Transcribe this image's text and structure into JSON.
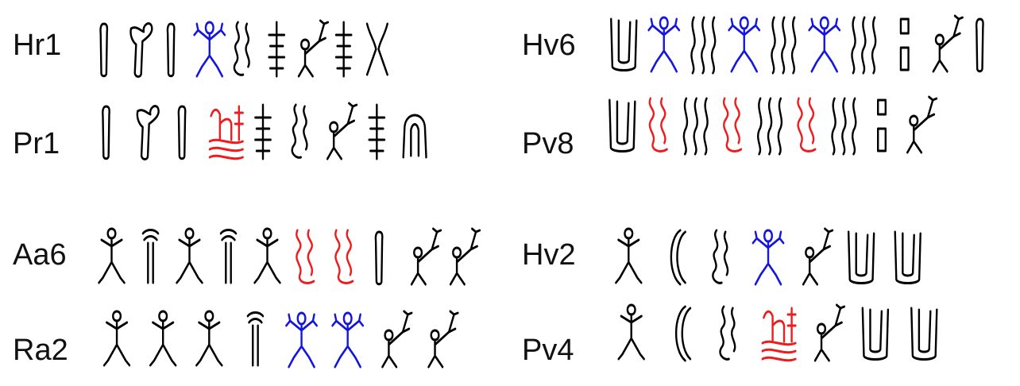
{
  "colors": {
    "ink": "#000000",
    "blue": "#1515e0",
    "red": "#ee1c1c"
  },
  "rows": [
    {
      "label": "Hr1",
      "glyphs": [
        "bar",
        "crook",
        "bar",
        "figure-arms",
        "squiggle",
        "tree",
        "figure-hand",
        "tree",
        "fork"
      ],
      "colors": [
        "ink",
        "ink",
        "ink",
        "blue",
        "ink",
        "ink",
        "ink",
        "ink",
        "ink"
      ]
    },
    {
      "label": "Pr1",
      "glyphs": [
        "bar",
        "crook",
        "bar",
        "tree-figure",
        "tree",
        "squiggle",
        "figure-hand",
        "tree",
        "arch"
      ],
      "colors": [
        "ink",
        "ink",
        "ink",
        "red",
        "ink",
        "ink",
        "ink",
        "ink",
        "ink"
      ]
    },
    {
      "label": "Aa6",
      "glyphs": [
        "figure-small",
        "pole",
        "figure-small",
        "pole",
        "figure-small",
        "coil",
        "coil",
        "bar",
        "figure-hand",
        "figure-hand"
      ],
      "colors": [
        "ink",
        "ink",
        "ink",
        "ink",
        "ink",
        "red",
        "red",
        "ink",
        "ink",
        "ink"
      ]
    },
    {
      "label": "Ra2",
      "glyphs": [
        "figure-small",
        "figure-small",
        "figure-small",
        "pole",
        "figure-arms",
        "figure-arms",
        "figure-hand",
        "figure-hand"
      ],
      "colors": [
        "ink",
        "ink",
        "ink",
        "ink",
        "blue",
        "blue",
        "ink",
        "ink"
      ]
    },
    {
      "label": "Hv6",
      "glyphs": [
        "cup",
        "figure-arms",
        "wave",
        "figure-arms",
        "wave",
        "figure-arms",
        "wave",
        "dot-pair",
        "figure-hand",
        "bar"
      ],
      "colors": [
        "ink",
        "blue",
        "ink",
        "blue",
        "ink",
        "blue",
        "ink",
        "ink",
        "ink",
        "ink"
      ]
    },
    {
      "label": "Pv8",
      "glyphs": [
        "cup",
        "coil",
        "wave",
        "coil",
        "wave",
        "coil",
        "wave",
        "dot-pair",
        "figure-hand"
      ],
      "colors": [
        "ink",
        "red",
        "ink",
        "red",
        "ink",
        "red",
        "ink",
        "ink",
        "ink"
      ]
    },
    {
      "label": "Hv2",
      "glyphs": [
        "figure-small",
        "bracket",
        "squiggle",
        "figure-arms",
        "figure-hand",
        "cup",
        "cup"
      ],
      "colors": [
        "ink",
        "ink",
        "ink",
        "blue",
        "ink",
        "ink",
        "ink"
      ]
    },
    {
      "label": "Pv4",
      "glyphs": [
        "figure-small",
        "bracket",
        "squiggle",
        "tree-figure",
        "figure-hand",
        "cup",
        "cup"
      ],
      "colors": [
        "ink",
        "ink",
        "ink",
        "red",
        "ink",
        "ink",
        "ink"
      ]
    }
  ]
}
